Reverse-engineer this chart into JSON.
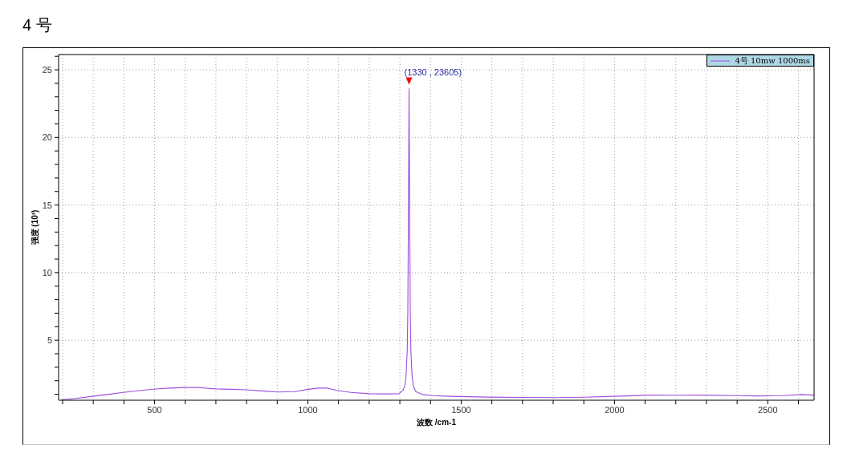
{
  "chart_data": {
    "type": "line",
    "title": "4 号",
    "xlabel": "波数 /cm-1",
    "ylabel": "强度 (10³)",
    "x": [
      197,
      241,
      298,
      350,
      398,
      450,
      503,
      550,
      599,
      642,
      699,
      750,
      799,
      850,
      900,
      957,
      1000,
      1035,
      1061,
      1096,
      1140,
      1201,
      1250,
      1297,
      1310,
      1316,
      1320,
      1324,
      1326,
      1328,
      1330,
      1332,
      1334,
      1336,
      1340,
      1344,
      1352,
      1375,
      1411,
      1462,
      1585,
      1700,
      1804,
      1900,
      2000,
      2111,
      2200,
      2287,
      2400,
      2462,
      2550,
      2611,
      2650
    ],
    "series": [
      {
        "name": "4号 10mw 1000ms",
        "color": "#9d4ee0",
        "values": [
          0.59,
          0.69,
          0.85,
          1.0,
          1.14,
          1.27,
          1.39,
          1.46,
          1.5,
          1.5,
          1.4,
          1.37,
          1.33,
          1.25,
          1.17,
          1.2,
          1.37,
          1.46,
          1.46,
          1.29,
          1.14,
          1.04,
          1.03,
          1.04,
          1.3,
          1.6,
          2.3,
          4.2,
          7.1,
          14.5,
          23.605,
          14.5,
          7.1,
          4.2,
          2.3,
          1.6,
          1.2,
          0.98,
          0.9,
          0.85,
          0.79,
          0.77,
          0.75,
          0.78,
          0.85,
          0.94,
          0.93,
          0.94,
          0.9,
          0.88,
          0.9,
          0.98,
          0.94
        ]
      }
    ],
    "xlim": [
      187,
      2651
    ],
    "ylim": [
      0.56,
      26.13
    ],
    "xticks": [
      {
        "value": 200,
        "label": null
      },
      {
        "value": 300,
        "label": null
      },
      {
        "value": 400,
        "label": null
      },
      500,
      {
        "value": 600,
        "label": null
      },
      {
        "value": 700,
        "label": null
      },
      {
        "value": 800,
        "label": null
      },
      {
        "value": 900,
        "label": null
      },
      1000,
      {
        "value": 1100,
        "label": null
      },
      {
        "value": 1200,
        "label": null
      },
      {
        "value": 1300,
        "label": null
      },
      {
        "value": 1400,
        "label": null
      },
      1500,
      {
        "value": 1600,
        "label": null
      },
      {
        "value": 1700,
        "label": null
      },
      {
        "value": 1800,
        "label": null
      },
      {
        "value": 1900,
        "label": null
      },
      2000,
      {
        "value": 2100,
        "label": null
      },
      {
        "value": 2200,
        "label": null
      },
      {
        "value": 2300,
        "label": null
      },
      {
        "value": 2400,
        "label": null
      },
      2500,
      {
        "value": 2600,
        "label": null
      }
    ],
    "yticks": [
      {
        "value": 1,
        "label": null
      },
      {
        "value": 2,
        "label": null
      },
      {
        "value": 3,
        "label": null
      },
      {
        "value": 4,
        "label": null
      },
      5,
      {
        "value": 6,
        "label": null
      },
      {
        "value": 7,
        "label": null
      },
      {
        "value": 8,
        "label": null
      },
      {
        "value": 9,
        "label": null
      },
      10,
      {
        "value": 11,
        "label": null
      },
      {
        "value": 12,
        "label": null
      },
      {
        "value": 13,
        "label": null
      },
      {
        "value": 14,
        "label": null
      },
      15,
      {
        "value": 16,
        "label": null
      },
      {
        "value": 17,
        "label": null
      },
      {
        "value": 18,
        "label": null
      },
      {
        "value": 19,
        "label": null
      },
      20,
      {
        "value": 21,
        "label": null
      },
      {
        "value": 22,
        "label": null
      },
      {
        "value": 23,
        "label": null
      },
      {
        "value": 24,
        "label": null
      },
      25,
      {
        "value": 26,
        "label": null
      }
    ],
    "grid": true,
    "legend": "top right",
    "annotations": [
      {
        "text": "(1330 , 23605)",
        "x": 1330,
        "y": 23.605
      }
    ]
  }
}
